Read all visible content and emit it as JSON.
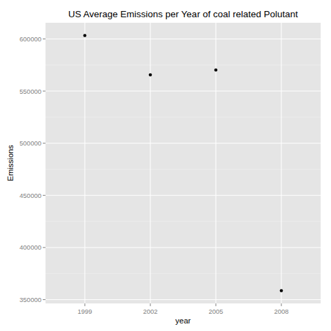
{
  "chart_data": {
    "type": "scatter",
    "title": "US Average Emissions per Year of coal related Polutant",
    "x_label": "year",
    "y_label": "Emissions",
    "categories": [
      "1999",
      "2002",
      "2005",
      "2008"
    ],
    "values": [
      603300,
      565600,
      570250,
      358600
    ],
    "color": "#000000",
    "marker": "circle",
    "ylim": [
      346400,
      615500
    ],
    "yticks": [
      350000,
      400000,
      450000,
      500000,
      550000,
      600000
    ],
    "grid": true
  }
}
